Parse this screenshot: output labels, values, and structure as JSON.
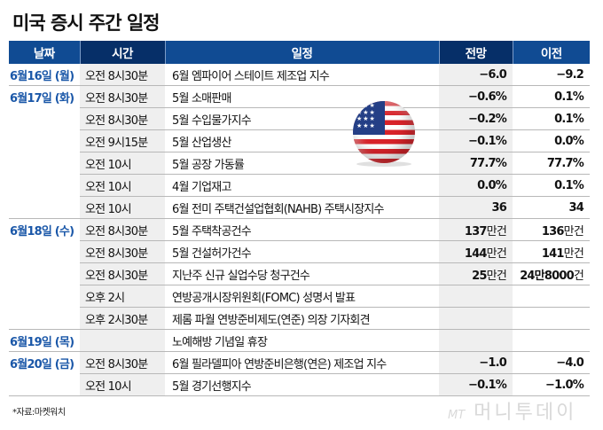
{
  "title": "미국 증시 주간 일정",
  "table": {
    "headers": {
      "date": "날짜",
      "time": "시간",
      "event": "일정",
      "forecast": "전망",
      "previous": "이전"
    },
    "rows": [
      {
        "date": "6월16일 (월)",
        "time": "오전 8시30분",
        "event": "6월 엠파이어 스테이트 제조업 지수",
        "forecast": "−6.0",
        "forecast_unit": "",
        "previous": "−9.2",
        "previous_unit": ""
      },
      {
        "date": "6월17일 (화)",
        "time": "오전 8시30분",
        "event": "5월 소매판매",
        "forecast": "−0.6%",
        "forecast_unit": "",
        "previous": "0.1%",
        "previous_unit": ""
      },
      {
        "date": "",
        "time": "오전 8시30분",
        "event": "5월 수입물가지수",
        "forecast": "−0.2%",
        "forecast_unit": "",
        "previous": "0.1%",
        "previous_unit": ""
      },
      {
        "date": "",
        "time": "오전 9시15분",
        "event": "5월 산업생산",
        "forecast": "−0.1%",
        "forecast_unit": "",
        "previous": "0.0%",
        "previous_unit": ""
      },
      {
        "date": "",
        "time": "오전 10시",
        "event": "5월 공장 가동률",
        "forecast": "77.7%",
        "forecast_unit": "",
        "previous": "77.7%",
        "previous_unit": ""
      },
      {
        "date": "",
        "time": "오전 10시",
        "event": "4월 기업재고",
        "forecast": "0.0%",
        "forecast_unit": "",
        "previous": "0.1%",
        "previous_unit": ""
      },
      {
        "date": "",
        "time": "오전 10시",
        "event": "6월 전미 주택건설업협회(NAHB) 주택시장지수",
        "forecast": "36",
        "forecast_unit": "",
        "previous": "34",
        "previous_unit": ""
      },
      {
        "date": "6월18일 (수)",
        "time": "오전 8시30분",
        "event": "5월 주택착공건수",
        "forecast": "137",
        "forecast_unit": "만건",
        "previous": "136",
        "previous_unit": "만건"
      },
      {
        "date": "",
        "time": "오전 8시30분",
        "event": "5월 건설허가건수",
        "forecast": "144",
        "forecast_unit": "만건",
        "previous": "141",
        "previous_unit": "만건"
      },
      {
        "date": "",
        "time": "오전 8시30분",
        "event": "지난주 신규 실업수당 청구건수",
        "forecast": "25",
        "forecast_unit": "만건",
        "previous": "24만8000",
        "previous_unit": "건"
      },
      {
        "date": "",
        "time": "오후 2시",
        "event": "연방공개시장위원회(FOMC) 성명서 발표",
        "forecast": "",
        "forecast_unit": "",
        "previous": "",
        "previous_unit": ""
      },
      {
        "date": "",
        "time": "오후 2시30분",
        "event": "제롬 파월 연방준비제도(연준) 의장 기자회견",
        "forecast": "",
        "forecast_unit": "",
        "previous": "",
        "previous_unit": ""
      },
      {
        "date": "6월19일 (목)",
        "time": "",
        "event": "노예해방 기념일 휴장",
        "forecast": "",
        "forecast_unit": "",
        "previous": "",
        "previous_unit": ""
      },
      {
        "date": "6월20일 (금)",
        "time": "오전 8시30분",
        "event": "6월 필라델피아 연방준비은행(연은) 제조업 지수",
        "forecast": "−1.0",
        "forecast_unit": "",
        "previous": "−4.0",
        "previous_unit": ""
      },
      {
        "date": "",
        "time": "오전 10시",
        "event": "5월 경기선행지수",
        "forecast": "−0.1%",
        "forecast_unit": "",
        "previous": "−1.0%",
        "previous_unit": ""
      }
    ]
  },
  "decoration": {
    "icon": "us-flag-globe-icon",
    "flag_stars": "★★★ ★★★ ★★★ ★★★"
  },
  "source": "*자료:마켓워치",
  "watermark": {
    "logo": "MT",
    "text": "머니투데이"
  },
  "colors": {
    "header_blue": "#104b93",
    "header_dark": "#062f68",
    "date_blue": "#1a57a8",
    "shade": "#efefef"
  }
}
